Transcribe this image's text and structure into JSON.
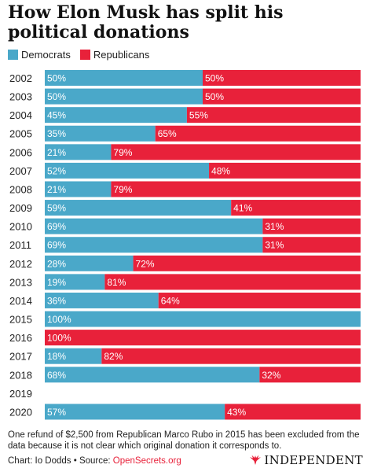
{
  "title": "How Elon Musk has split his political donations",
  "legend": [
    {
      "label": "Democrats",
      "color": "#4aa8c9"
    },
    {
      "label": "Republicans",
      "color": "#e8213a"
    }
  ],
  "chart_data": {
    "type": "bar",
    "orientation": "horizontal",
    "stacked": true,
    "percent": true,
    "categories": [
      "2002",
      "2003",
      "2004",
      "2005",
      "2006",
      "2007",
      "2008",
      "2009",
      "2010",
      "2011",
      "2012",
      "2013",
      "2014",
      "2015",
      "2016",
      "2017",
      "2018",
      "2019",
      "2020"
    ],
    "series": [
      {
        "name": "Democrats",
        "color": "#4aa8c9",
        "values": [
          50,
          50,
          45,
          35,
          21,
          52,
          21,
          59,
          69,
          69,
          28,
          19,
          36,
          100,
          0,
          18,
          68,
          null,
          57
        ]
      },
      {
        "name": "Republicans",
        "color": "#e8213a",
        "values": [
          50,
          50,
          55,
          65,
          79,
          48,
          79,
          41,
          31,
          31,
          72,
          81,
          64,
          0,
          100,
          82,
          32,
          null,
          43
        ]
      }
    ],
    "data_labels": "percent",
    "xlim": [
      0,
      100
    ]
  },
  "note": "One refund of $2,500 from Republican Marco Rubo in 2015 has been excluded from the data because it is not clear which original donation it corresponds to.",
  "credit": {
    "prefix": "Chart: Io Dodds • Source: ",
    "source": "OpenSecrets.org"
  },
  "logo": {
    "text": "INDEPENDENT",
    "icon": "eagle-logo-icon"
  }
}
